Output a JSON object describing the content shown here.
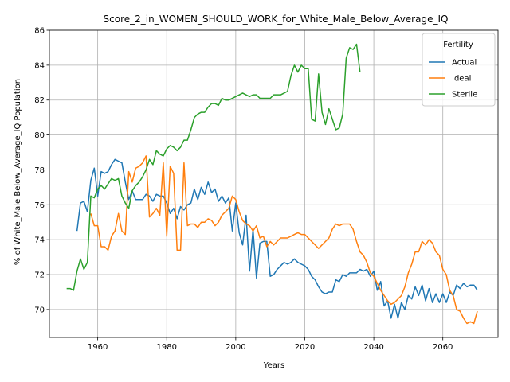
{
  "chart_data": {
    "type": "line",
    "title": "Score_2_in_WOMEN_SHOULD_WORK_for_White_Male_Below_Average_IQ",
    "xlabel": "Years",
    "ylabel": "% of White_Male Below_Average_IQ Population",
    "xlim": [
      1946,
      2076
    ],
    "ylim": [
      68.4,
      86.0
    ],
    "xticks": [
      1960,
      1980,
      2000,
      2020,
      2040,
      2060
    ],
    "yticks": [
      70,
      72,
      74,
      76,
      78,
      80,
      82,
      84,
      86
    ],
    "grid": true,
    "legend": {
      "title": "Fertility",
      "placement": "top-right"
    },
    "series": [
      {
        "name": "Actual",
        "color": "#1f77b4",
        "points": [
          [
            1954,
            74.5
          ],
          [
            1955,
            76.1
          ],
          [
            1956,
            76.2
          ],
          [
            1957,
            75.6
          ],
          [
            1958,
            77.4
          ],
          [
            1959,
            78.1
          ],
          [
            1960,
            76.5
          ],
          [
            1961,
            77.9
          ],
          [
            1962,
            77.8
          ],
          [
            1963,
            77.9
          ],
          [
            1964,
            78.3
          ],
          [
            1965,
            78.6
          ],
          [
            1966,
            78.5
          ],
          [
            1967,
            78.4
          ],
          [
            1968,
            77.3
          ],
          [
            1969,
            76.3
          ],
          [
            1970,
            76.8
          ],
          [
            1971,
            76.3
          ],
          [
            1972,
            76.3
          ],
          [
            1973,
            76.3
          ],
          [
            1974,
            76.6
          ],
          [
            1975,
            76.5
          ],
          [
            1976,
            76.2
          ],
          [
            1977,
            76.6
          ],
          [
            1978,
            76.5
          ],
          [
            1979,
            76.5
          ],
          [
            1980,
            76.1
          ],
          [
            1981,
            75.5
          ],
          [
            1982,
            75.8
          ],
          [
            1983,
            75.2
          ],
          [
            1984,
            75.9
          ],
          [
            1985,
            75.7
          ],
          [
            1986,
            76.0
          ],
          [
            1987,
            76.1
          ],
          [
            1988,
            76.9
          ],
          [
            1989,
            76.3
          ],
          [
            1990,
            77.0
          ],
          [
            1991,
            76.6
          ],
          [
            1992,
            77.3
          ],
          [
            1993,
            76.7
          ],
          [
            1994,
            76.9
          ],
          [
            1995,
            76.2
          ],
          [
            1996,
            76.5
          ],
          [
            1997,
            76.1
          ],
          [
            1998,
            76.4
          ],
          [
            1999,
            74.5
          ],
          [
            2000,
            76.1
          ],
          [
            2001,
            74.4
          ],
          [
            2002,
            73.7
          ],
          [
            2003,
            75.4
          ],
          [
            2004,
            72.2
          ],
          [
            2005,
            74.6
          ],
          [
            2006,
            71.8
          ],
          [
            2007,
            73.8
          ],
          [
            2008,
            73.9
          ],
          [
            2009,
            73.9
          ],
          [
            2010,
            71.9
          ],
          [
            2011,
            72.0
          ],
          [
            2012,
            72.3
          ],
          [
            2013,
            72.5
          ],
          [
            2014,
            72.7
          ],
          [
            2015,
            72.6
          ],
          [
            2016,
            72.7
          ],
          [
            2017,
            72.9
          ],
          [
            2018,
            72.7
          ],
          [
            2019,
            72.6
          ],
          [
            2020,
            72.5
          ],
          [
            2021,
            72.3
          ],
          [
            2022,
            71.9
          ],
          [
            2023,
            71.7
          ],
          [
            2024,
            71.3
          ],
          [
            2025,
            71.0
          ],
          [
            2026,
            70.9
          ],
          [
            2027,
            71.0
          ],
          [
            2028,
            71.0
          ],
          [
            2029,
            71.7
          ],
          [
            2030,
            71.6
          ],
          [
            2031,
            72.0
          ],
          [
            2032,
            71.9
          ],
          [
            2033,
            72.1
          ],
          [
            2034,
            72.1
          ],
          [
            2035,
            72.1
          ],
          [
            2036,
            72.3
          ],
          [
            2037,
            72.2
          ],
          [
            2038,
            72.3
          ],
          [
            2039,
            71.9
          ],
          [
            2040,
            72.2
          ],
          [
            2041,
            71.1
          ],
          [
            2042,
            71.6
          ],
          [
            2043,
            70.2
          ],
          [
            2044,
            70.5
          ],
          [
            2045,
            69.5
          ],
          [
            2046,
            70.3
          ],
          [
            2047,
            69.5
          ],
          [
            2048,
            70.4
          ],
          [
            2049,
            70.0
          ],
          [
            2050,
            70.8
          ],
          [
            2051,
            70.6
          ],
          [
            2052,
            71.3
          ],
          [
            2053,
            70.8
          ],
          [
            2054,
            71.4
          ],
          [
            2055,
            70.5
          ],
          [
            2056,
            71.2
          ],
          [
            2057,
            70.4
          ],
          [
            2058,
            70.9
          ],
          [
            2059,
            70.4
          ],
          [
            2060,
            70.9
          ],
          [
            2061,
            70.4
          ],
          [
            2062,
            71.0
          ],
          [
            2063,
            70.8
          ],
          [
            2064,
            71.4
          ],
          [
            2065,
            71.2
          ],
          [
            2066,
            71.5
          ],
          [
            2067,
            71.3
          ],
          [
            2068,
            71.4
          ],
          [
            2069,
            71.4
          ],
          [
            2070,
            71.1
          ]
        ]
      },
      {
        "name": "Ideal",
        "color": "#ff7f0e",
        "points": [
          [
            1958,
            75.5
          ],
          [
            1959,
            74.8
          ],
          [
            1960,
            74.8
          ],
          [
            1961,
            73.6
          ],
          [
            1962,
            73.6
          ],
          [
            1963,
            73.4
          ],
          [
            1964,
            74.2
          ],
          [
            1965,
            74.5
          ],
          [
            1966,
            75.5
          ],
          [
            1967,
            74.5
          ],
          [
            1968,
            74.3
          ],
          [
            1969,
            77.9
          ],
          [
            1970,
            77.3
          ],
          [
            1971,
            78.1
          ],
          [
            1972,
            78.2
          ],
          [
            1973,
            78.4
          ],
          [
            1974,
            78.8
          ],
          [
            1975,
            75.3
          ],
          [
            1976,
            75.5
          ],
          [
            1977,
            75.8
          ],
          [
            1978,
            75.4
          ],
          [
            1979,
            78.4
          ],
          [
            1980,
            74.2
          ],
          [
            1981,
            78.2
          ],
          [
            1982,
            77.8
          ],
          [
            1983,
            73.4
          ],
          [
            1984,
            73.4
          ],
          [
            1985,
            78.4
          ],
          [
            1986,
            74.8
          ],
          [
            1987,
            74.9
          ],
          [
            1988,
            74.9
          ],
          [
            1989,
            74.7
          ],
          [
            1990,
            75.0
          ],
          [
            1991,
            75.0
          ],
          [
            1992,
            75.2
          ],
          [
            1993,
            75.1
          ],
          [
            1994,
            74.8
          ],
          [
            1995,
            75.0
          ],
          [
            1996,
            75.4
          ],
          [
            1997,
            75.6
          ],
          [
            1998,
            75.8
          ],
          [
            1999,
            76.5
          ],
          [
            2000,
            76.3
          ],
          [
            2001,
            75.6
          ],
          [
            2002,
            75.1
          ],
          [
            2003,
            74.9
          ],
          [
            2004,
            74.8
          ],
          [
            2005,
            74.5
          ],
          [
            2006,
            74.8
          ],
          [
            2007,
            74.1
          ],
          [
            2008,
            74.2
          ],
          [
            2009,
            73.6
          ],
          [
            2010,
            73.9
          ],
          [
            2011,
            73.7
          ],
          [
            2012,
            73.9
          ],
          [
            2013,
            74.1
          ],
          [
            2014,
            74.1
          ],
          [
            2015,
            74.1
          ],
          [
            2016,
            74.2
          ],
          [
            2017,
            74.3
          ],
          [
            2018,
            74.4
          ],
          [
            2019,
            74.3
          ],
          [
            2020,
            74.3
          ],
          [
            2021,
            74.1
          ],
          [
            2022,
            73.9
          ],
          [
            2023,
            73.7
          ],
          [
            2024,
            73.5
          ],
          [
            2025,
            73.7
          ],
          [
            2026,
            73.9
          ],
          [
            2027,
            74.1
          ],
          [
            2028,
            74.6
          ],
          [
            2029,
            74.9
          ],
          [
            2030,
            74.8
          ],
          [
            2031,
            74.9
          ],
          [
            2032,
            74.9
          ],
          [
            2033,
            74.9
          ],
          [
            2034,
            74.6
          ],
          [
            2035,
            73.9
          ],
          [
            2036,
            73.3
          ],
          [
            2037,
            73.1
          ],
          [
            2038,
            72.7
          ],
          [
            2039,
            72.1
          ],
          [
            2040,
            71.9
          ],
          [
            2041,
            71.5
          ],
          [
            2042,
            71.1
          ],
          [
            2043,
            70.8
          ],
          [
            2044,
            70.5
          ],
          [
            2045,
            70.3
          ],
          [
            2046,
            70.4
          ],
          [
            2047,
            70.6
          ],
          [
            2048,
            70.8
          ],
          [
            2049,
            71.3
          ],
          [
            2050,
            72.1
          ],
          [
            2051,
            72.6
          ],
          [
            2052,
            73.3
          ],
          [
            2053,
            73.3
          ],
          [
            2054,
            73.9
          ],
          [
            2055,
            73.7
          ],
          [
            2056,
            74.0
          ],
          [
            2057,
            73.8
          ],
          [
            2058,
            73.3
          ],
          [
            2059,
            73.1
          ],
          [
            2060,
            72.3
          ],
          [
            2061,
            72.0
          ],
          [
            2062,
            71.1
          ],
          [
            2063,
            70.8
          ],
          [
            2064,
            70.0
          ],
          [
            2065,
            69.9
          ],
          [
            2066,
            69.5
          ],
          [
            2067,
            69.2
          ],
          [
            2068,
            69.3
          ],
          [
            2069,
            69.2
          ],
          [
            2070,
            69.9
          ]
        ]
      },
      {
        "name": "Sterile",
        "color": "#2ca02c",
        "points": [
          [
            1951,
            71.2
          ],
          [
            1952,
            71.2
          ],
          [
            1953,
            71.1
          ],
          [
            1954,
            72.2
          ],
          [
            1955,
            72.9
          ],
          [
            1956,
            72.3
          ],
          [
            1957,
            72.7
          ],
          [
            1958,
            76.5
          ],
          [
            1959,
            76.4
          ],
          [
            1960,
            76.9
          ],
          [
            1961,
            77.1
          ],
          [
            1962,
            76.9
          ],
          [
            1963,
            77.2
          ],
          [
            1964,
            77.5
          ],
          [
            1965,
            77.4
          ],
          [
            1966,
            77.5
          ],
          [
            1967,
            76.5
          ],
          [
            1968,
            76.1
          ],
          [
            1969,
            75.8
          ],
          [
            1970,
            76.8
          ],
          [
            1971,
            77.1
          ],
          [
            1972,
            77.3
          ],
          [
            1973,
            77.6
          ],
          [
            1974,
            78.0
          ],
          [
            1975,
            78.6
          ],
          [
            1976,
            78.3
          ],
          [
            1977,
            79.1
          ],
          [
            1978,
            78.9
          ],
          [
            1979,
            78.8
          ],
          [
            1980,
            79.2
          ],
          [
            1981,
            79.4
          ],
          [
            1982,
            79.3
          ],
          [
            1983,
            79.1
          ],
          [
            1984,
            79.3
          ],
          [
            1985,
            79.7
          ],
          [
            1986,
            79.7
          ],
          [
            1987,
            80.3
          ],
          [
            1988,
            81.0
          ],
          [
            1989,
            81.2
          ],
          [
            1990,
            81.3
          ],
          [
            1991,
            81.3
          ],
          [
            1992,
            81.6
          ],
          [
            1993,
            81.8
          ],
          [
            1994,
            81.8
          ],
          [
            1995,
            81.7
          ],
          [
            1996,
            82.1
          ],
          [
            1997,
            82.0
          ],
          [
            1998,
            82.0
          ],
          [
            1999,
            82.1
          ],
          [
            2000,
            82.2
          ],
          [
            2001,
            82.3
          ],
          [
            2002,
            82.4
          ],
          [
            2003,
            82.3
          ],
          [
            2004,
            82.2
          ],
          [
            2005,
            82.3
          ],
          [
            2006,
            82.3
          ],
          [
            2007,
            82.1
          ],
          [
            2008,
            82.1
          ],
          [
            2009,
            82.1
          ],
          [
            2010,
            82.1
          ],
          [
            2011,
            82.3
          ],
          [
            2012,
            82.3
          ],
          [
            2013,
            82.3
          ],
          [
            2014,
            82.4
          ],
          [
            2015,
            82.5
          ],
          [
            2016,
            83.4
          ],
          [
            2017,
            84.0
          ],
          [
            2018,
            83.6
          ],
          [
            2019,
            84.0
          ],
          [
            2020,
            83.8
          ],
          [
            2021,
            83.8
          ],
          [
            2022,
            80.9
          ],
          [
            2023,
            80.8
          ],
          [
            2024,
            83.5
          ],
          [
            2025,
            81.3
          ],
          [
            2026,
            80.6
          ],
          [
            2027,
            81.5
          ],
          [
            2028,
            80.9
          ],
          [
            2029,
            80.3
          ],
          [
            2030,
            80.4
          ],
          [
            2031,
            81.2
          ],
          [
            2032,
            84.4
          ],
          [
            2033,
            85.0
          ],
          [
            2034,
            84.9
          ],
          [
            2035,
            85.2
          ],
          [
            2036,
            83.6
          ]
        ]
      }
    ]
  }
}
